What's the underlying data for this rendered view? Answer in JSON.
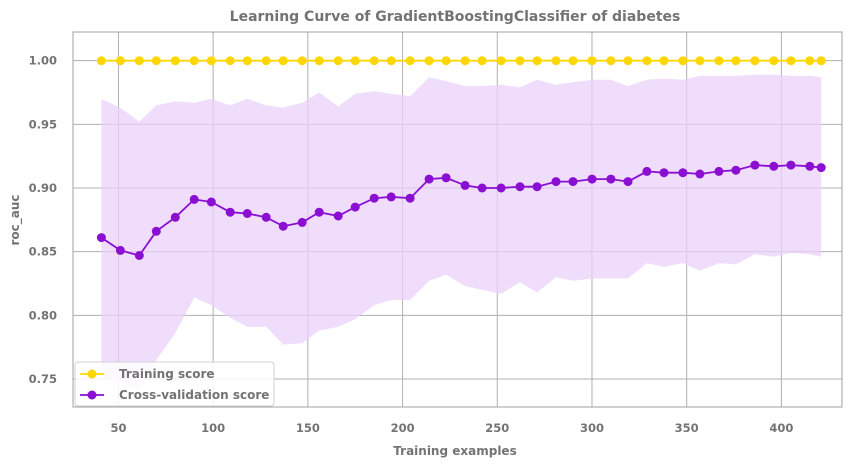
{
  "chart_data": {
    "type": "line",
    "title": "Learning Curve of GradientBoostingClassifier of diabetes",
    "xlabel": "Training examples",
    "ylabel": "roc_auc",
    "xlim": [
      26,
      432
    ],
    "ylim": [
      0.728,
      1.0225
    ],
    "xticks": [
      50,
      100,
      150,
      200,
      250,
      300,
      350,
      400
    ],
    "yticks": [
      0.75,
      0.8,
      0.85,
      0.9,
      0.95,
      1.0
    ],
    "ytick_labels": [
      "0.75",
      "0.80",
      "0.85",
      "0.90",
      "0.95",
      "1.00"
    ],
    "grid": true,
    "legend_position": "lower-left",
    "x": [
      41,
      51,
      61,
      70,
      80,
      90,
      99,
      109,
      118,
      128,
      137,
      147,
      156,
      166,
      175,
      185,
      194,
      204,
      214,
      223,
      233,
      242,
      252,
      262,
      271,
      281,
      290,
      300,
      310,
      319,
      329,
      338,
      348,
      357,
      367,
      376,
      386,
      396,
      405,
      415,
      421
    ],
    "series": [
      {
        "name": "Training score",
        "color": "#ffd700",
        "marker": "circle",
        "values": [
          1,
          1,
          1,
          1,
          1,
          1,
          1,
          1,
          1,
          1,
          1,
          1,
          1,
          1,
          1,
          1,
          1,
          1,
          1,
          1,
          1,
          1,
          1,
          1,
          1,
          1,
          1,
          1,
          1,
          1,
          1,
          1,
          1,
          1,
          1,
          1,
          1,
          1,
          1,
          1,
          1
        ]
      },
      {
        "name": "Cross-validation score",
        "color": "#8a0fd3",
        "band_color": "#e9d2f9",
        "marker": "circle",
        "values": [
          0.861,
          0.851,
          0.847,
          0.866,
          0.877,
          0.891,
          0.889,
          0.881,
          0.88,
          0.877,
          0.87,
          0.873,
          0.881,
          0.878,
          0.885,
          0.892,
          0.893,
          0.892,
          0.907,
          0.908,
          0.902,
          0.9,
          0.9,
          0.901,
          0.901,
          0.905,
          0.905,
          0.907,
          0.907,
          0.905,
          0.913,
          0.912,
          0.912,
          0.911,
          0.913,
          0.914,
          0.918,
          0.917,
          0.918,
          0.917,
          0.916
        ],
        "band_upper": [
          0.97,
          0.963,
          0.952,
          0.965,
          0.968,
          0.967,
          0.97,
          0.965,
          0.97,
          0.965,
          0.963,
          0.967,
          0.975,
          0.964,
          0.974,
          0.976,
          0.974,
          0.972,
          0.987,
          0.984,
          0.98,
          0.98,
          0.981,
          0.979,
          0.985,
          0.981,
          0.983,
          0.985,
          0.985,
          0.98,
          0.985,
          0.986,
          0.985,
          0.988,
          0.988,
          0.988,
          0.989,
          0.989,
          0.988,
          0.988,
          0.987
        ],
        "band_lower": [
          0.752,
          0.748,
          0.742,
          0.765,
          0.786,
          0.814,
          0.808,
          0.798,
          0.791,
          0.791,
          0.777,
          0.778,
          0.788,
          0.791,
          0.797,
          0.808,
          0.812,
          0.812,
          0.827,
          0.832,
          0.823,
          0.82,
          0.817,
          0.826,
          0.818,
          0.83,
          0.827,
          0.829,
          0.829,
          0.829,
          0.841,
          0.838,
          0.841,
          0.835,
          0.841,
          0.84,
          0.848,
          0.846,
          0.849,
          0.848,
          0.846
        ]
      }
    ]
  }
}
